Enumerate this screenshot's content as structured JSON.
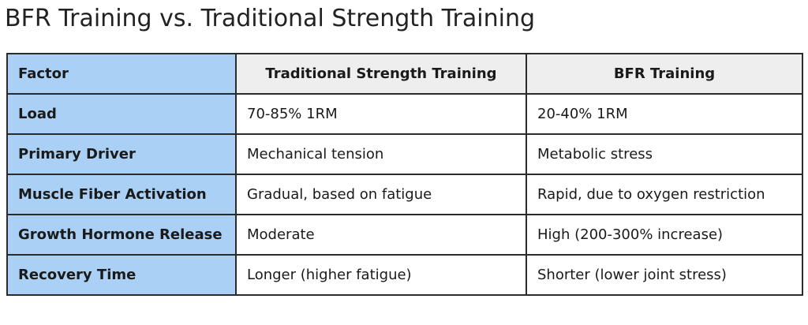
{
  "title": "BFR Training vs. Traditional Strength Training",
  "colors": {
    "factor_column_bg": "#aad1f5",
    "header_bg": "#eeeeee",
    "border": "#2b2b2b"
  },
  "table": {
    "headers": [
      "Factor",
      "Traditional Strength Training",
      "BFR Training"
    ],
    "rows": [
      [
        "Load",
        "70-85% 1RM",
        "20-40% 1RM"
      ],
      [
        "Primary Driver",
        "Mechanical tension",
        "Metabolic stress"
      ],
      [
        "Muscle Fiber Activation",
        "Gradual, based on fatigue",
        "Rapid, due to oxygen restriction"
      ],
      [
        "Growth Hormone Release",
        "Moderate",
        "High (200-300% increase)"
      ],
      [
        "Recovery Time",
        "Longer (higher fatigue)",
        "Shorter (lower joint stress)"
      ]
    ]
  }
}
